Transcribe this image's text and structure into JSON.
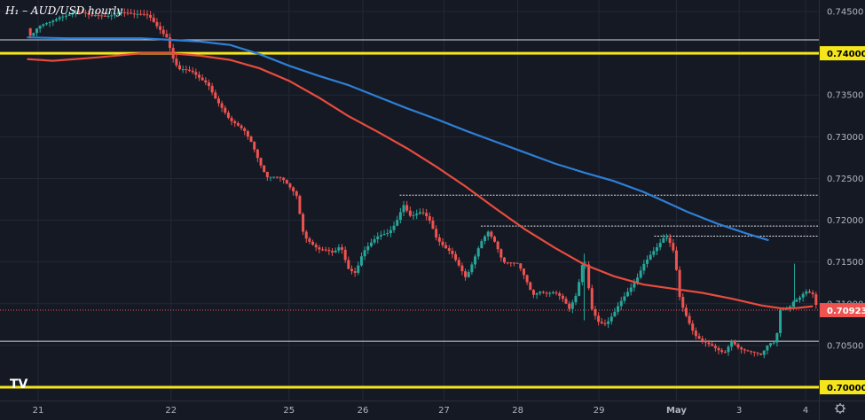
{
  "chart_data": {
    "type": "candlestick",
    "title": "H₁ – AUD/USD hourly",
    "platform_logo_text": "TV",
    "colors": {
      "background": "#151924",
      "grid": "#232837",
      "up": "#26a69a",
      "down": "#ef5350",
      "ma_red": "#e84c3d",
      "ma_blue": "#2e7fd6",
      "yellow": "#f5e51b",
      "white_line": "#d8d8d8",
      "axis_text": "#b2b5be"
    },
    "ylim": [
      0.6998,
      0.7466
    ],
    "y_ticks": [
      "0.74500",
      "0.74000",
      "0.73500",
      "0.73000",
      "0.72500",
      "0.72000",
      "0.71500",
      "0.71000",
      "0.70500",
      "0.70000"
    ],
    "x_ticks": [
      "21",
      "22",
      "25",
      "26",
      "27",
      "28",
      "29",
      "May",
      "3",
      "4"
    ],
    "x_tick_positions": [
      0,
      18,
      34,
      44,
      55,
      65,
      76,
      86.5,
      95,
      104
    ],
    "current_price": {
      "label": "0.70923",
      "value": 0.70923
    },
    "horizontal_levels": [
      {
        "value": 0.74,
        "label": "0.74000",
        "style": "yellow"
      },
      {
        "value": 0.7,
        "label": "0.70000",
        "style": "yellow"
      },
      {
        "value": 0.7416,
        "style": "white"
      },
      {
        "value": 0.7055,
        "style": "white"
      }
    ],
    "resistance_lines": [
      {
        "value": 0.723,
        "x_start": 49
      },
      {
        "value": 0.7193,
        "x_start": 60
      },
      {
        "value": 0.7181,
        "x_start": 83.5
      }
    ],
    "close_path": [
      [
        -1.5,
        0.743
      ],
      [
        -1,
        0.7418
      ],
      [
        0,
        0.7428
      ],
      [
        1.5,
        0.7436
      ],
      [
        3,
        0.7447
      ],
      [
        5,
        0.745
      ],
      [
        7,
        0.7442
      ],
      [
        9,
        0.7447
      ],
      [
        11,
        0.7451
      ],
      [
        13,
        0.7443
      ],
      [
        15,
        0.7446
      ],
      [
        16.5,
        0.7432
      ],
      [
        17.5,
        0.742
      ],
      [
        18.2,
        0.7395
      ],
      [
        19,
        0.7378
      ],
      [
        21,
        0.7376
      ],
      [
        23,
        0.7367
      ],
      [
        24,
        0.7348
      ],
      [
        25,
        0.7332
      ],
      [
        26,
        0.7316
      ],
      [
        28,
        0.7307
      ],
      [
        29,
        0.7295
      ],
      [
        30,
        0.7272
      ],
      [
        31,
        0.7252
      ],
      [
        33,
        0.7247
      ],
      [
        35,
        0.7232
      ],
      [
        36,
        0.7185
      ],
      [
        38,
        0.7164
      ],
      [
        40,
        0.7158
      ],
      [
        41,
        0.717
      ],
      [
        42,
        0.7145
      ],
      [
        43,
        0.714
      ],
      [
        44,
        0.7162
      ],
      [
        46,
        0.7177
      ],
      [
        47.5,
        0.7185
      ],
      [
        48.5,
        0.72
      ],
      [
        49.5,
        0.7222
      ],
      [
        50.5,
        0.7205
      ],
      [
        52,
        0.7207
      ],
      [
        53,
        0.7198
      ],
      [
        54,
        0.7178
      ],
      [
        56,
        0.7165
      ],
      [
        57,
        0.7147
      ],
      [
        58,
        0.7128
      ],
      [
        59,
        0.7148
      ],
      [
        60,
        0.7172
      ],
      [
        61,
        0.7188
      ],
      [
        62,
        0.7176
      ],
      [
        63,
        0.7152
      ],
      [
        65,
        0.7145
      ],
      [
        66,
        0.7128
      ],
      [
        67,
        0.711
      ],
      [
        68,
        0.7117
      ],
      [
        70,
        0.7115
      ],
      [
        71,
        0.7105
      ],
      [
        72,
        0.709
      ],
      [
        73,
        0.711
      ],
      [
        74,
        0.716
      ],
      [
        75,
        0.7098
      ],
      [
        76,
        0.708
      ],
      [
        77,
        0.7075
      ],
      [
        78,
        0.7085
      ],
      [
        79,
        0.71
      ],
      [
        80,
        0.7115
      ],
      [
        81,
        0.713
      ],
      [
        82,
        0.715
      ],
      [
        83,
        0.716
      ],
      [
        84,
        0.7167
      ],
      [
        85,
        0.7178
      ],
      [
        86,
        0.7165
      ],
      [
        86.5,
        0.714
      ],
      [
        87,
        0.7105
      ],
      [
        88,
        0.7085
      ],
      [
        89,
        0.7065
      ],
      [
        90,
        0.7055
      ],
      [
        91,
        0.7048
      ],
      [
        92,
        0.7042
      ],
      [
        93,
        0.704
      ],
      [
        94,
        0.7058
      ],
      [
        95,
        0.705
      ],
      [
        96,
        0.7045
      ],
      [
        97,
        0.704
      ],
      [
        98,
        0.7035
      ],
      [
        99,
        0.705
      ],
      [
        100,
        0.7055
      ],
      [
        100.5,
        0.7095
      ],
      [
        101,
        0.7098
      ],
      [
        102,
        0.71
      ],
      [
        102.5,
        0.7106
      ],
      [
        103,
        0.7105
      ],
      [
        104,
        0.7112
      ],
      [
        105,
        0.7108
      ],
      [
        105.5,
        0.7094
      ]
    ],
    "wicks": [
      {
        "x": 102.5,
        "low": 0.7095,
        "high": 0.7148
      },
      {
        "x": 74,
        "low": 0.708,
        "high": 0.716
      }
    ],
    "series": [
      {
        "color": "#e84c3d",
        "points": [
          [
            -1.5,
            0.7393
          ],
          [
            2,
            0.7391
          ],
          [
            8,
            0.7395
          ],
          [
            14,
            0.74
          ],
          [
            18,
            0.74
          ],
          [
            22,
            0.7397
          ],
          [
            26,
            0.7392
          ],
          [
            30,
            0.7382
          ],
          [
            34,
            0.7367
          ],
          [
            38,
            0.7347
          ],
          [
            42,
            0.7325
          ],
          [
            46,
            0.7306
          ],
          [
            50,
            0.7286
          ],
          [
            54,
            0.7264
          ],
          [
            58,
            0.724
          ],
          [
            62,
            0.7214
          ],
          [
            66,
            0.7189
          ],
          [
            70,
            0.7167
          ],
          [
            74,
            0.7147
          ],
          [
            78,
            0.7133
          ],
          [
            82,
            0.7123
          ],
          [
            86,
            0.7118
          ],
          [
            90,
            0.7113
          ],
          [
            94,
            0.7106
          ],
          [
            98,
            0.7098
          ],
          [
            101,
            0.7094
          ],
          [
            103,
            0.7095
          ],
          [
            105,
            0.7097
          ]
        ]
      },
      {
        "color": "#2e7fd6",
        "points": [
          [
            -1.5,
            0.7419
          ],
          [
            4,
            0.7418
          ],
          [
            10,
            0.7418
          ],
          [
            14,
            0.7418
          ],
          [
            18,
            0.7416
          ],
          [
            22,
            0.7414
          ],
          [
            26,
            0.741
          ],
          [
            30,
            0.7399
          ],
          [
            34,
            0.7385
          ],
          [
            38,
            0.7373
          ],
          [
            42,
            0.7362
          ],
          [
            46,
            0.7348
          ],
          [
            50,
            0.7334
          ],
          [
            54,
            0.7321
          ],
          [
            58,
            0.7307
          ],
          [
            62,
            0.7294
          ],
          [
            66,
            0.7281
          ],
          [
            70,
            0.7268
          ],
          [
            74,
            0.7257
          ],
          [
            78,
            0.7247
          ],
          [
            82,
            0.7234
          ],
          [
            85,
            0.7222
          ],
          [
            88,
            0.721
          ],
          [
            92,
            0.7196
          ],
          [
            96,
            0.7184
          ],
          [
            99,
            0.7176
          ]
        ]
      }
    ]
  }
}
